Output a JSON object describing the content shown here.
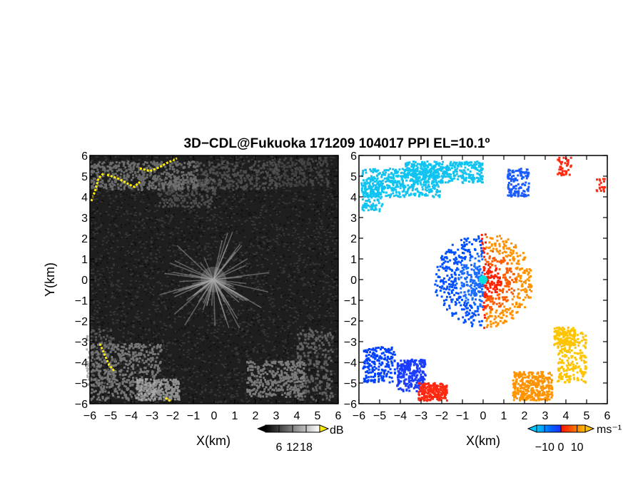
{
  "title": "3D−CDL@Fukuoka 171209 104017 PPI EL=10.1º",
  "chart_data": [
    {
      "type": "heatmap",
      "name": "reflectivity-panel",
      "xlabel": "X(km)",
      "ylabel": "Y(km)",
      "xlim": [
        -6,
        6
      ],
      "ylim": [
        -6,
        6
      ],
      "xticks": [
        "−6",
        "−5",
        "−4",
        "−3",
        "−2",
        "−1",
        "0",
        "1",
        "2",
        "3",
        "4",
        "5",
        "6"
      ],
      "yticks": [
        "−6",
        "−5",
        "−4",
        "−3",
        "−2",
        "−1",
        "0",
        "1",
        "2",
        "3",
        "4",
        "5",
        "6"
      ],
      "colorbar": {
        "unit": "dB",
        "ticks": [
          "6",
          "12",
          "18"
        ],
        "range": [
          0,
          24
        ],
        "extend": "both"
      },
      "colors": {
        "background": "#1e1e1e",
        "low": "#000000",
        "high": "#ffffff",
        "saturated": "#ffee00"
      }
    },
    {
      "type": "heatmap",
      "name": "doppler-velocity-panel",
      "xlabel": "X(km)",
      "ylabel": "",
      "xlim": [
        -6,
        6
      ],
      "ylim": [
        -6,
        6
      ],
      "xticks": [
        "−6",
        "−5",
        "−4",
        "−3",
        "−2",
        "−1",
        "0",
        "1",
        "2",
        "3",
        "4",
        "5",
        "6"
      ],
      "yticks": [
        "−6",
        "−5",
        "−4",
        "−3",
        "−2",
        "−1",
        "0",
        "1",
        "2",
        "3",
        "4",
        "5",
        "6"
      ],
      "colorbar": {
        "unit": "ms⁻¹",
        "ticks": [
          "−10",
          "0",
          "10"
        ],
        "range": [
          -15,
          15
        ],
        "extend": "both"
      },
      "colors": {
        "neg_far": "#00c8ff",
        "neg": "#0050ff",
        "pos": "#ff2000",
        "pos_far": "#ffb400",
        "origin": "#00e0e0"
      }
    }
  ]
}
